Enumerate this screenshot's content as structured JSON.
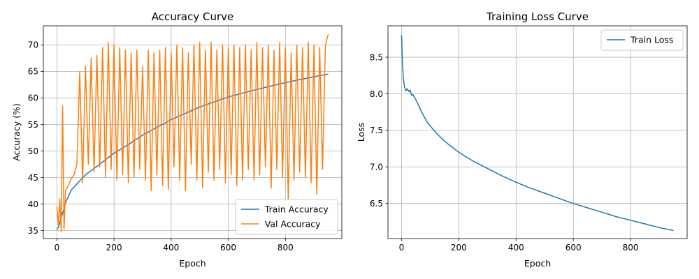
{
  "chart_data": [
    {
      "type": "line",
      "title": "Accuracy Curve",
      "xlabel": "Epoch",
      "ylabel": "Accuracy (%)",
      "xlim": [
        -47.5,
        997.5
      ],
      "ylim": [
        33.5,
        73.6
      ],
      "xticks": [
        0,
        200,
        400,
        600,
        800
      ],
      "yticks": [
        35,
        40,
        45,
        50,
        55,
        60,
        65,
        70
      ],
      "grid": true,
      "legend_position": "lower-right",
      "series": [
        {
          "name": "Train Accuracy",
          "color": "#1f77b4",
          "x": [
            0,
            5,
            10,
            20,
            30,
            50,
            75,
            100,
            150,
            200,
            250,
            300,
            400,
            500,
            600,
            700,
            800,
            900,
            950
          ],
          "y": [
            35.2,
            35.6,
            36.5,
            38.3,
            40.2,
            42.6,
            44.1,
            45.5,
            47.5,
            49.6,
            51.2,
            53.0,
            55.9,
            58.3,
            60.2,
            61.6,
            62.9,
            64.0,
            64.5
          ]
        },
        {
          "name": "Val Accuracy",
          "color": "#ff7f0e",
          "x": [
            0,
            5,
            10,
            15,
            20,
            25,
            30,
            40,
            50,
            60,
            70,
            80,
            90,
            100,
            110,
            120,
            130,
            140,
            150,
            160,
            170,
            180,
            190,
            200,
            210,
            220,
            230,
            240,
            250,
            260,
            270,
            280,
            290,
            300,
            310,
            320,
            330,
            340,
            350,
            360,
            370,
            380,
            390,
            400,
            410,
            420,
            430,
            440,
            450,
            460,
            470,
            480,
            490,
            500,
            510,
            520,
            530,
            540,
            550,
            560,
            570,
            580,
            590,
            600,
            610,
            620,
            630,
            640,
            650,
            660,
            670,
            680,
            690,
            700,
            710,
            720,
            730,
            740,
            750,
            760,
            770,
            780,
            790,
            800,
            810,
            820,
            830,
            840,
            850,
            860,
            870,
            880,
            890,
            900,
            910,
            920,
            930,
            940,
            950
          ],
          "y": [
            39.5,
            36.0,
            41.0,
            34.8,
            58.5,
            35.2,
            42.5,
            43.5,
            44.8,
            45.5,
            47.5,
            65.0,
            44.0,
            66.0,
            47.5,
            67.5,
            46.0,
            68.0,
            47.0,
            69.5,
            45.0,
            70.5,
            46.5,
            70.0,
            44.5,
            69.5,
            45.5,
            69.0,
            44.0,
            68.5,
            45.0,
            69.0,
            46.5,
            66.0,
            44.5,
            69.0,
            42.5,
            68.5,
            45.5,
            69.0,
            43.5,
            69.5,
            42.8,
            68.5,
            47.0,
            70.0,
            44.5,
            69.5,
            42.5,
            68.5,
            47.5,
            70.0,
            44.5,
            70.5,
            43.0,
            69.0,
            46.0,
            70.5,
            44.5,
            69.0,
            46.5,
            70.0,
            44.0,
            69.5,
            45.5,
            70.0,
            43.5,
            69.5,
            44.5,
            70.0,
            46.5,
            69.0,
            44.5,
            70.5,
            45.5,
            69.5,
            47.0,
            70.0,
            43.0,
            69.0,
            46.5,
            70.5,
            45.0,
            69.5,
            40.8,
            68.5,
            44.5,
            70.0,
            46.0,
            69.5,
            45.0,
            70.5,
            44.0,
            70.0,
            41.8,
            69.5,
            46.5,
            70.0,
            72.0
          ]
        }
      ]
    },
    {
      "type": "line",
      "title": "Training Loss Curve",
      "xlabel": "Epoch",
      "ylabel": "Loss",
      "xlim": [
        -47.5,
        997.5
      ],
      "ylim": [
        6.02,
        8.93
      ],
      "xticks": [
        0,
        200,
        400,
        600,
        800
      ],
      "yticks": [
        6.5,
        7.0,
        7.5,
        8.0,
        8.5
      ],
      "grid": true,
      "legend_position": "upper-right",
      "series": [
        {
          "name": "Train Loss",
          "color": "#1f77b4",
          "x": [
            0,
            3,
            6,
            10,
            15,
            20,
            25,
            30,
            35,
            40,
            45,
            50,
            60,
            70,
            80,
            90,
            100,
            120,
            140,
            160,
            180,
            200,
            220,
            250,
            280,
            300,
            350,
            400,
            450,
            500,
            550,
            600,
            650,
            700,
            750,
            800,
            850,
            900,
            950
          ],
          "y": [
            8.8,
            8.45,
            8.22,
            8.1,
            8.04,
            8.07,
            8.03,
            8.05,
            7.98,
            7.99,
            7.95,
            7.92,
            7.84,
            7.75,
            7.68,
            7.61,
            7.56,
            7.47,
            7.39,
            7.32,
            7.26,
            7.2,
            7.15,
            7.08,
            7.02,
            6.98,
            6.88,
            6.79,
            6.71,
            6.64,
            6.57,
            6.5,
            6.44,
            6.38,
            6.32,
            6.27,
            6.22,
            6.17,
            6.13
          ]
        }
      ]
    }
  ]
}
